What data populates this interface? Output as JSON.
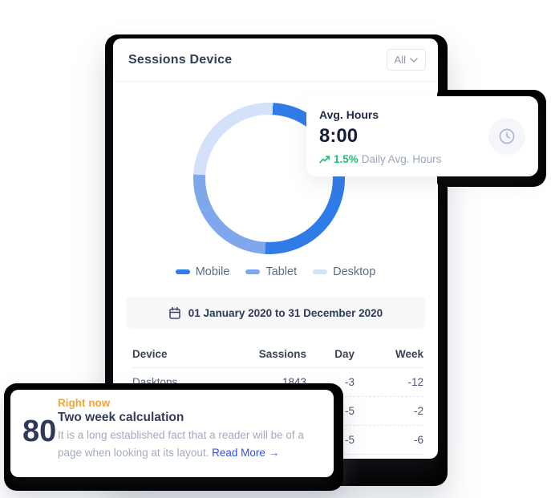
{
  "main_card": {
    "title": "Sessions Device",
    "filter_label": "All",
    "date_range": "01 January 2020 to 31 December 2020"
  },
  "chart_data": {
    "type": "pie",
    "donut": true,
    "title": "Sessions Device",
    "rotation_deg": 3,
    "legend_position": "bottom",
    "segments": [
      {
        "label": "Mobile",
        "value": 50,
        "color": "#2F7BE8"
      },
      {
        "label": "Tablet",
        "value": 25,
        "color": "#7FA7EC"
      },
      {
        "label": "Desktop",
        "value": 25,
        "color": "#D3E2FA"
      }
    ]
  },
  "avg_card": {
    "title": "Avg. Hours",
    "value": "8:00",
    "trend_pct": "1.5%",
    "trend_label": "Daily Avg. Hours",
    "trend_color": "#25BD76"
  },
  "table": {
    "columns": [
      "Device",
      "Sassions",
      "Day",
      "Week"
    ],
    "rows": [
      {
        "device": "Dasktops",
        "sessions": "1843",
        "day": "-3",
        "week": "-12"
      },
      {
        "device": "",
        "sessions": "",
        "day": "-5",
        "week": "-2"
      },
      {
        "device": "",
        "sessions": "",
        "day": "-5",
        "week": "-6"
      }
    ]
  },
  "notice_card": {
    "value": "80",
    "badge": "Right now",
    "title": "Two week calculation",
    "body": "It is a long established fact that a reader will be of a page when looking at its layout.",
    "link_label": "Read More →"
  },
  "colors": {
    "accent_orange": "#F2A53C",
    "link_blue": "#3350E0",
    "slab_black": "#000000"
  }
}
